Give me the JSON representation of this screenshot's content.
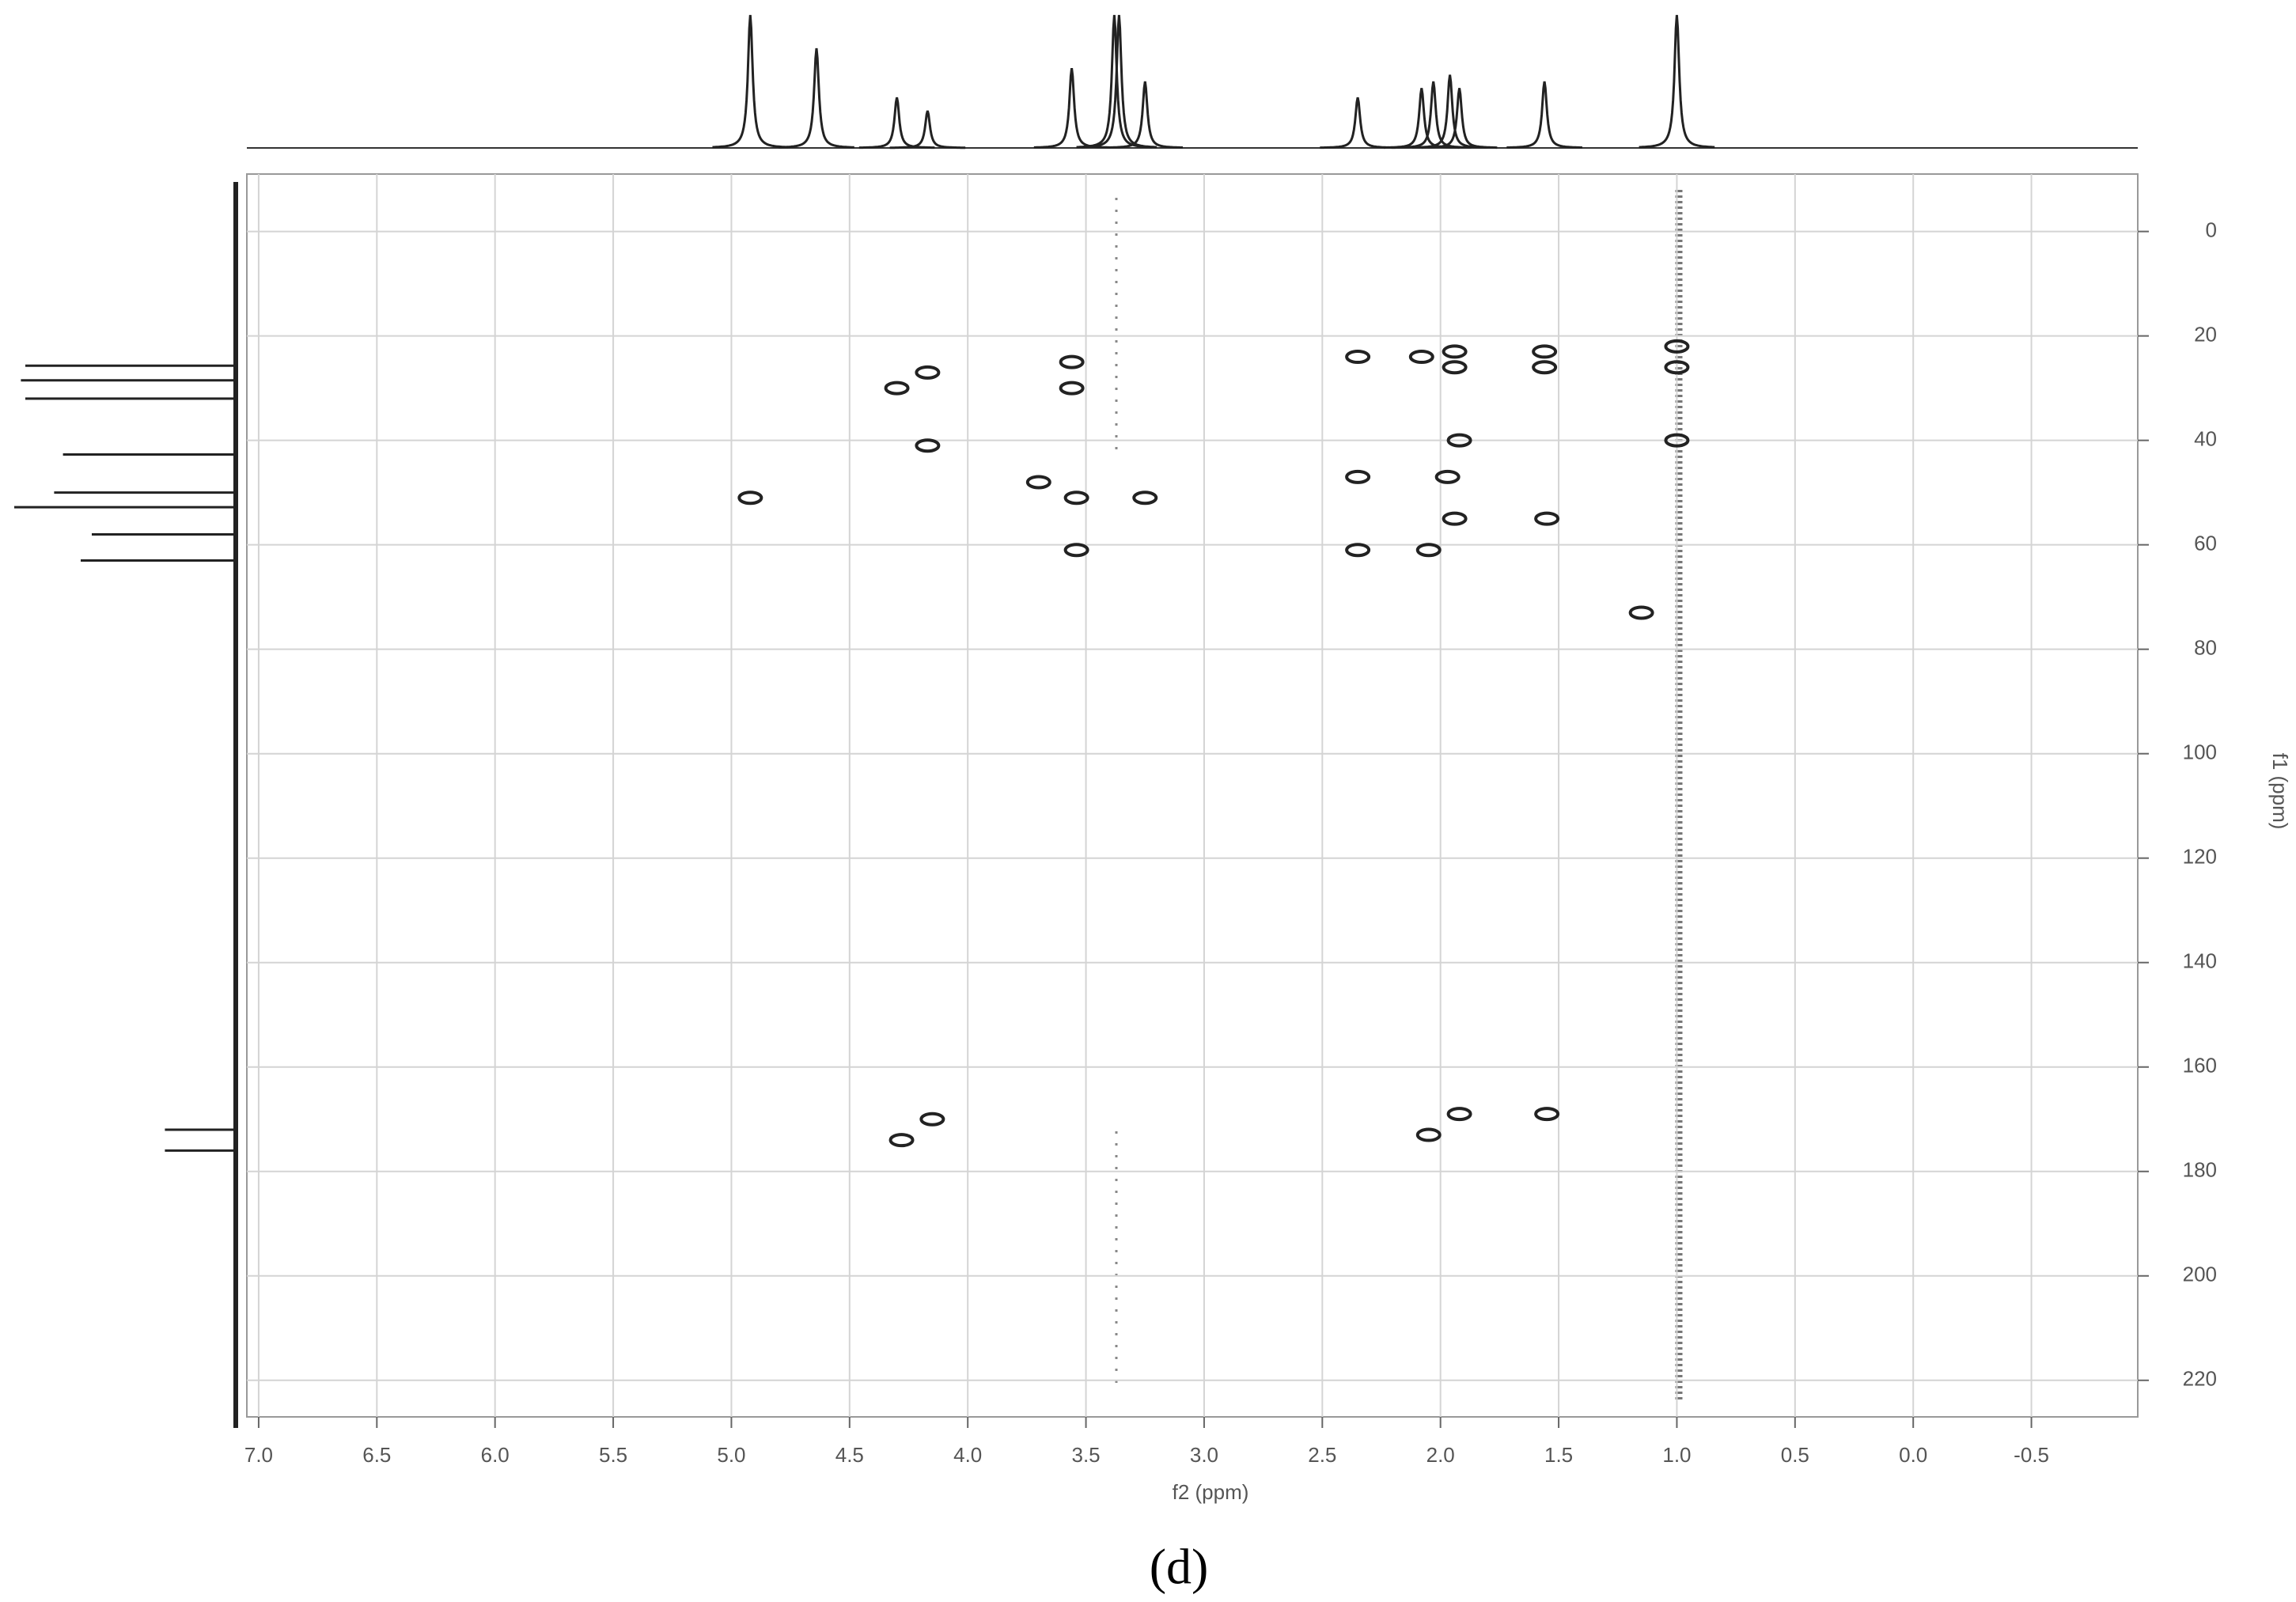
{
  "chart_data": {
    "type": "scatter",
    "x_label": "f2 (ppm)",
    "y_label": "f1 (ppm)",
    "caption": "(d)",
    "xlim": [
      7.05,
      -0.95
    ],
    "ylim": [
      -11,
      227
    ],
    "xticks": [
      {
        "value": 7,
        "label": "7.0"
      },
      6.5,
      {
        "value": 6,
        "label": "6.0"
      },
      5.5,
      {
        "value": 5,
        "label": "5.0"
      },
      4.5,
      {
        "value": 4,
        "label": "4.0"
      },
      3.5,
      {
        "value": 3,
        "label": "3.0"
      },
      2.5,
      {
        "value": 2,
        "label": "2.0"
      },
      1.5,
      {
        "value": 1,
        "label": "1.0"
      },
      0.5,
      {
        "value": 0,
        "label": "0.0"
      },
      -0.5
    ],
    "yticks": [
      0,
      20,
      40,
      60,
      80,
      100,
      120,
      140,
      160,
      180,
      200,
      220
    ],
    "grid": true,
    "color": "#222222",
    "series": [
      {
        "x": [
          4.92,
          4.3,
          4.28,
          4.17,
          4.17,
          4.15,
          3.7,
          3.56,
          3.56,
          3.54,
          3.54,
          3.25,
          2.35,
          2.35,
          2.35,
          2.08,
          2.05,
          2.05,
          1.97,
          1.94,
          1.94,
          1.92,
          1.94,
          1.92,
          1.56,
          1.56,
          1.55,
          1.55,
          1.15,
          1.0,
          1.0,
          1.0
        ],
        "values": [
          51,
          30,
          174,
          27,
          41,
          170,
          48,
          25,
          30,
          51,
          61,
          51,
          24,
          47,
          61,
          24,
          61,
          173,
          47,
          23,
          26,
          40,
          55,
          169,
          23,
          26,
          55,
          169,
          73,
          22,
          26,
          40
        ]
      }
    ],
    "top_projection": {
      "x": [
        4.92,
        4.64,
        4.3,
        4.17,
        3.56,
        3.38,
        3.36,
        3.25,
        2.35,
        2.08,
        2.03,
        1.96,
        1.92,
        1.56,
        1.0
      ],
      "values": [
        1.0,
        0.75,
        0.38,
        0.28,
        0.6,
        1.0,
        1.0,
        0.5,
        0.38,
        0.45,
        0.5,
        0.55,
        0.45,
        0.5,
        1.0
      ]
    },
    "left_projection": {
      "y": [
        25.7,
        28.5,
        32,
        42.7,
        50,
        52.8,
        58,
        63,
        172,
        176
      ],
      "values": [
        0.95,
        0.97,
        0.95,
        0.78,
        0.82,
        1.0,
        0.65,
        0.7,
        0.32,
        0.32
      ]
    }
  }
}
